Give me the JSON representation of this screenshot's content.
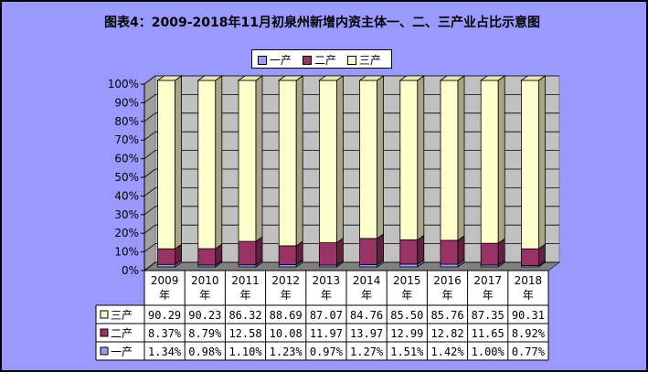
{
  "chart_data": {
    "type": "bar",
    "stacked": true,
    "percent": true,
    "title": "图表4：2009-2018年11月初泉州新增内资主体一、二、三产业占比示意图",
    "categories": [
      "2009年",
      "2010年",
      "2011年",
      "2012年",
      "2013年",
      "2014年",
      "2015年",
      "2016年",
      "2017年",
      "2018年"
    ],
    "series": [
      {
        "name": "一产",
        "color": "#9999ff",
        "labels": [
          "1.34%",
          "0.98%",
          "1.10%",
          "1.23%",
          "0.97%",
          "1.27%",
          "1.51%",
          "1.42%",
          "1.00%",
          "0.77%"
        ],
        "values": [
          1.34,
          0.98,
          1.1,
          1.23,
          0.97,
          1.27,
          1.51,
          1.42,
          1.0,
          0.77
        ]
      },
      {
        "name": "二产",
        "color": "#993366",
        "labels": [
          "8.37%",
          "8.79%",
          "12.58",
          "10.08",
          "11.97",
          "13.97",
          "12.99",
          "12.82",
          "11.65",
          "8.92%"
        ],
        "values": [
          8.37,
          8.79,
          12.58,
          10.08,
          11.97,
          13.97,
          12.99,
          12.82,
          11.65,
          8.92
        ]
      },
      {
        "name": "三产",
        "color": "#ffffcc",
        "labels": [
          "90.29",
          "90.23",
          "86.32",
          "88.69",
          "87.07",
          "84.76",
          "85.50",
          "85.76",
          "87.35",
          "90.31"
        ],
        "values": [
          90.29,
          90.23,
          86.32,
          88.69,
          87.07,
          84.76,
          85.5,
          85.76,
          87.35,
          90.31
        ]
      }
    ],
    "yticks": [
      "0%",
      "10%",
      "20%",
      "30%",
      "40%",
      "50%",
      "60%",
      "70%",
      "80%",
      "90%",
      "100%"
    ],
    "ylim": [
      0,
      100
    ],
    "legend_position": "top",
    "grid": true,
    "data_table": true
  }
}
